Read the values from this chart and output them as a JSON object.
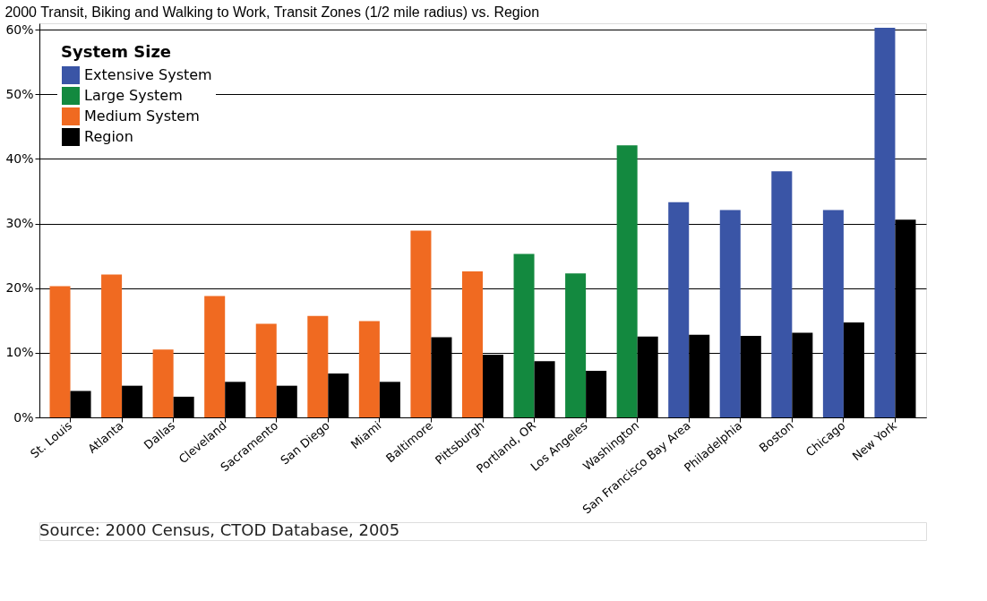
{
  "chart_data": {
    "type": "bar",
    "title": "2000 Transit, Biking and Walking to Work, Transit Zones (1/2 mile radius) vs. Region",
    "categories": [
      "St. Louis",
      "Atlanta",
      "Dallas",
      "Cleveland",
      "Sacramento",
      "San Diego",
      "Miami",
      "Baltimore",
      "Pittsburgh",
      "Portland, OR",
      "Los Angeles",
      "Washington",
      "San Francisco Bay Area",
      "Philadelphia",
      "Boston",
      "Chicago",
      "New York"
    ],
    "series": [
      {
        "name": "Extensive System",
        "color": "#3a55a6",
        "values": [
          null,
          null,
          null,
          null,
          null,
          null,
          null,
          null,
          null,
          null,
          null,
          null,
          33.3,
          32.1,
          38.1,
          32.1,
          60.3
        ]
      },
      {
        "name": "Large System",
        "color": "#13893f",
        "values": [
          null,
          null,
          null,
          null,
          null,
          null,
          null,
          null,
          null,
          25.3,
          22.3,
          42.1,
          null,
          null,
          null,
          null,
          null
        ]
      },
      {
        "name": "Medium System",
        "color": "#f06a21",
        "values": [
          20.3,
          22.1,
          10.5,
          18.8,
          14.5,
          15.7,
          14.9,
          28.9,
          22.6,
          null,
          null,
          null,
          null,
          null,
          null,
          null,
          null
        ]
      },
      {
        "name": "Region",
        "color": "#000000",
        "values": [
          4.1,
          4.9,
          3.2,
          5.5,
          4.9,
          6.8,
          5.5,
          12.4,
          9.7,
          8.7,
          7.2,
          12.5,
          12.8,
          12.6,
          13.1,
          14.7,
          30.6
        ]
      }
    ],
    "legend_title": "System Size",
    "legend": "top left",
    "ylim": [
      0,
      61
    ],
    "yticks": [
      {
        "value": 0,
        "label": "0%"
      },
      {
        "value": 10,
        "label": "10%"
      },
      {
        "value": 20,
        "label": "20%"
      },
      {
        "value": 30,
        "label": "30%"
      },
      {
        "value": 40,
        "label": "40%"
      },
      {
        "value": 50,
        "label": "50%"
      },
      {
        "value": 60,
        "label": "60%"
      }
    ],
    "grid": "y",
    "annotations": [
      "Source: 2000 Census, CTOD Database, 2005"
    ]
  }
}
